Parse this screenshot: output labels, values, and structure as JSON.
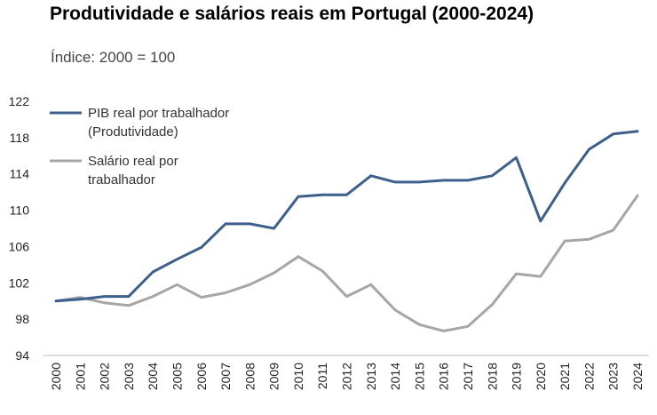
{
  "chart_data": {
    "type": "line",
    "title": "Produtividade e salários reais em Portugal (2000-2024)",
    "subtitle": "Índice: 2000 = 100",
    "xlabel": "",
    "ylabel": "",
    "x": [
      "2000",
      "2001",
      "2002",
      "2003",
      "2004",
      "2005",
      "2006",
      "2007",
      "2008",
      "2009",
      "2010",
      "2011",
      "2012",
      "2013",
      "2014",
      "2015",
      "2016",
      "2017",
      "2018",
      "2019",
      "2020",
      "2021",
      "2022",
      "2023",
      "2024"
    ],
    "ylim": [
      94,
      122
    ],
    "yticks": [
      "94",
      "98",
      "102",
      "106",
      "110",
      "114",
      "118",
      "122"
    ],
    "grid": false,
    "legend": "top-left",
    "series": [
      {
        "name_lines": [
          "PIB real por trabalhador",
          "(Produtividade)"
        ],
        "color": "#3d5f8c",
        "values": [
          100.0,
          100.2,
          100.5,
          100.5,
          103.2,
          104.6,
          105.9,
          108.5,
          108.5,
          108.0,
          111.5,
          111.7,
          111.7,
          113.8,
          113.1,
          113.1,
          113.3,
          113.3,
          113.8,
          115.8,
          108.8,
          113.0,
          116.7,
          118.4,
          118.7
        ]
      },
      {
        "name_lines": [
          "Salário real por",
          "trabalhador"
        ],
        "color": "#a6a6a6",
        "values": [
          100.0,
          100.4,
          99.8,
          99.5,
          100.5,
          101.8,
          100.4,
          100.9,
          101.8,
          103.1,
          104.9,
          103.3,
          100.5,
          101.8,
          99.0,
          97.4,
          96.7,
          97.2,
          99.6,
          103.0,
          102.7,
          106.6,
          106.8,
          107.8,
          111.6
        ]
      }
    ]
  }
}
